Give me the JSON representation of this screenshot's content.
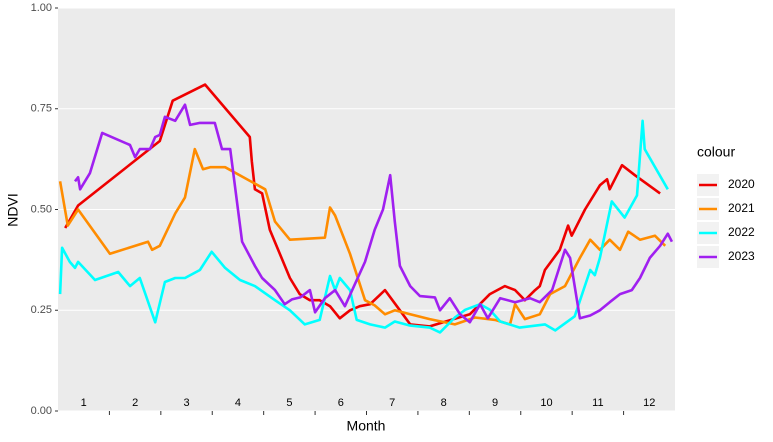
{
  "chart_data": {
    "type": "line",
    "xlabel": "Month",
    "ylabel": "NDVI",
    "legend_title": "colour",
    "legend": "right",
    "grid": true,
    "xlim": [
      0.5,
      12.5
    ],
    "xticks": [
      1,
      2,
      3,
      4,
      5,
      6,
      7,
      8,
      9,
      10,
      11,
      12
    ],
    "xminorticks": [
      1.5,
      2.5,
      3.5,
      4.5,
      5.5,
      6.5,
      7.5,
      8.5,
      9.5,
      10.5,
      11.5
    ],
    "ylim": [
      0,
      1
    ],
    "yticks": [
      {
        "value": 0,
        "label": "0.00"
      },
      {
        "value": 0.25,
        "label": "0.25"
      },
      {
        "value": 0.5,
        "label": "0.50"
      },
      {
        "value": 0.75,
        "label": "0.75"
      },
      {
        "value": 1,
        "label": "1.00"
      }
    ],
    "series": [
      {
        "name": "2020",
        "color": "#ee0000",
        "x": [
          0.64,
          0.89,
          2.48,
          2.73,
          3.36,
          4.23,
          4.27,
          4.33,
          4.47,
          4.62,
          5.01,
          5.2,
          5.4,
          5.59,
          5.79,
          5.98,
          6.18,
          6.37,
          6.57,
          6.86,
          7.15,
          7.35,
          7.73,
          8.12,
          8.51,
          8.9,
          9.19,
          9.39,
          9.58,
          9.78,
          9.87,
          9.97,
          10.26,
          10.42,
          10.49,
          10.75,
          11.04,
          11.18,
          11.23,
          11.47,
          11.72,
          12.21
        ],
        "values": [
          0.454,
          0.51,
          0.67,
          0.77,
          0.81,
          0.68,
          0.62,
          0.55,
          0.54,
          0.45,
          0.33,
          0.29,
          0.275,
          0.275,
          0.26,
          0.23,
          0.25,
          0.26,
          0.265,
          0.3,
          0.25,
          0.215,
          0.21,
          0.225,
          0.24,
          0.29,
          0.31,
          0.3,
          0.275,
          0.3,
          0.31,
          0.35,
          0.4,
          0.46,
          0.435,
          0.5,
          0.56,
          0.575,
          0.55,
          0.61,
          0.585,
          0.54
        ]
      },
      {
        "name": "2021",
        "color": "#ff8c00",
        "x": [
          0.54,
          0.69,
          0.89,
          1.51,
          2.25,
          2.33,
          2.48,
          2.78,
          2.97,
          3.16,
          3.32,
          3.46,
          3.75,
          4.53,
          4.72,
          5.01,
          5.69,
          5.79,
          5.89,
          6.18,
          6.47,
          6.66,
          6.86,
          7.05,
          7.35,
          7.73,
          8.22,
          8.61,
          9.0,
          9.29,
          9.39,
          9.58,
          9.87,
          10.07,
          10.36,
          10.65,
          10.85,
          11.04,
          11.23,
          11.43,
          11.59,
          11.82,
          12.11,
          12.31
        ],
        "values": [
          0.57,
          0.46,
          0.5,
          0.39,
          0.42,
          0.4,
          0.41,
          0.49,
          0.53,
          0.65,
          0.6,
          0.605,
          0.605,
          0.55,
          0.47,
          0.425,
          0.43,
          0.505,
          0.485,
          0.39,
          0.275,
          0.262,
          0.24,
          0.25,
          0.24,
          0.228,
          0.215,
          0.232,
          0.226,
          0.215,
          0.265,
          0.228,
          0.24,
          0.29,
          0.31,
          0.38,
          0.425,
          0.4,
          0.425,
          0.4,
          0.445,
          0.425,
          0.435,
          0.41
        ]
      },
      {
        "name": "2022",
        "color": "#00ffff",
        "x": [
          0.54,
          0.58,
          0.73,
          0.83,
          0.89,
          1.22,
          1.67,
          1.9,
          2.09,
          2.39,
          2.58,
          2.78,
          2.97,
          3.26,
          3.36,
          3.49,
          3.75,
          4.04,
          4.33,
          4.72,
          5.01,
          5.3,
          5.59,
          5.79,
          5.89,
          5.98,
          6.18,
          6.31,
          6.57,
          6.86,
          7.05,
          7.35,
          7.73,
          7.93,
          8.22,
          8.42,
          8.71,
          8.9,
          9.1,
          9.48,
          9.97,
          10.17,
          10.55,
          10.85,
          10.94,
          11.04,
          11.27,
          11.52,
          11.76,
          11.87,
          11.91,
          12.36
        ],
        "values": [
          0.29,
          0.405,
          0.37,
          0.355,
          0.37,
          0.325,
          0.345,
          0.31,
          0.33,
          0.22,
          0.32,
          0.33,
          0.33,
          0.35,
          0.37,
          0.395,
          0.355,
          0.325,
          0.31,
          0.275,
          0.25,
          0.215,
          0.226,
          0.335,
          0.3,
          0.33,
          0.3,
          0.226,
          0.215,
          0.207,
          0.222,
          0.212,
          0.207,
          0.195,
          0.232,
          0.251,
          0.265,
          0.251,
          0.222,
          0.207,
          0.215,
          0.2,
          0.235,
          0.35,
          0.337,
          0.38,
          0.52,
          0.48,
          0.535,
          0.72,
          0.65,
          0.55
        ]
      },
      {
        "name": "2023",
        "color": "#a020f0",
        "x": [
          0.83,
          0.89,
          0.93,
          1.12,
          1.36,
          1.9,
          2.0,
          2.09,
          2.29,
          2.39,
          2.48,
          2.58,
          2.78,
          2.97,
          3.07,
          3.26,
          3.55,
          3.69,
          3.85,
          4.08,
          4.33,
          4.47,
          4.72,
          4.91,
          5.05,
          5.21,
          5.4,
          5.5,
          5.69,
          5.89,
          6.08,
          6.47,
          6.66,
          6.82,
          6.96,
          7.05,
          7.15,
          7.35,
          7.54,
          7.83,
          7.93,
          8.12,
          8.32,
          8.51,
          8.71,
          8.86,
          9.1,
          9.39,
          9.68,
          9.87,
          10.11,
          10.36,
          10.46,
          10.65,
          10.85,
          11.04,
          11.23,
          11.43,
          11.66,
          11.82,
          12.01,
          12.21,
          12.36,
          12.44
        ],
        "values": [
          0.57,
          0.58,
          0.55,
          0.59,
          0.69,
          0.66,
          0.63,
          0.65,
          0.65,
          0.68,
          0.685,
          0.73,
          0.72,
          0.76,
          0.71,
          0.715,
          0.715,
          0.65,
          0.65,
          0.42,
          0.36,
          0.33,
          0.3,
          0.265,
          0.277,
          0.282,
          0.3,
          0.245,
          0.28,
          0.3,
          0.26,
          0.37,
          0.45,
          0.5,
          0.585,
          0.47,
          0.36,
          0.31,
          0.285,
          0.282,
          0.25,
          0.28,
          0.24,
          0.22,
          0.265,
          0.23,
          0.28,
          0.27,
          0.28,
          0.27,
          0.3,
          0.4,
          0.38,
          0.23,
          0.237,
          0.25,
          0.27,
          0.29,
          0.3,
          0.33,
          0.38,
          0.41,
          0.44,
          0.42
        ]
      }
    ]
  }
}
